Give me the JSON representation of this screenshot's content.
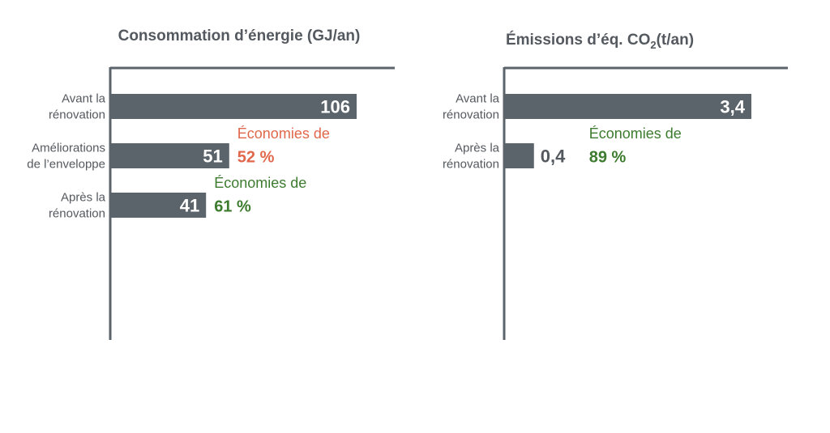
{
  "colors": {
    "bar": "#5b636b",
    "axis": "#5b636b",
    "text": "#54595f",
    "savings_orange": "#e0674b",
    "savings_green": "#3d7b2f"
  },
  "chart_data": [
    {
      "type": "bar",
      "orientation": "horizontal",
      "title": "Consommation d’énergie (GJ/an)",
      "categories": [
        [
          "Avant la",
          "rénovation"
        ],
        [
          "Améliorations",
          "de l’enveloppe"
        ],
        [
          "Après la",
          "rénovation"
        ]
      ],
      "values": [
        106,
        51,
        41
      ],
      "value_labels": [
        "106",
        "51",
        "41"
      ],
      "xlim": [
        0,
        122
      ],
      "annotations": [
        null,
        {
          "label": "Économies de",
          "value": "52 %",
          "color": "savings_orange"
        },
        {
          "label": "Économies de",
          "value": "61 %",
          "color": "savings_green"
        }
      ]
    },
    {
      "type": "bar",
      "orientation": "horizontal",
      "title": "Émissions d’éq. CO",
      "title_sub": "2",
      "title_suffix": "(t/an)",
      "categories": [
        [
          "Avant la",
          "rénovation"
        ],
        [
          "Après la",
          "rénovation"
        ]
      ],
      "values": [
        3.4,
        0.4
      ],
      "value_labels": [
        "3,4",
        "0,4"
      ],
      "xlim": [
        0,
        3.9
      ],
      "annotations": [
        null,
        {
          "label": "Économies de",
          "value": "89 %",
          "color": "savings_green"
        }
      ]
    }
  ]
}
